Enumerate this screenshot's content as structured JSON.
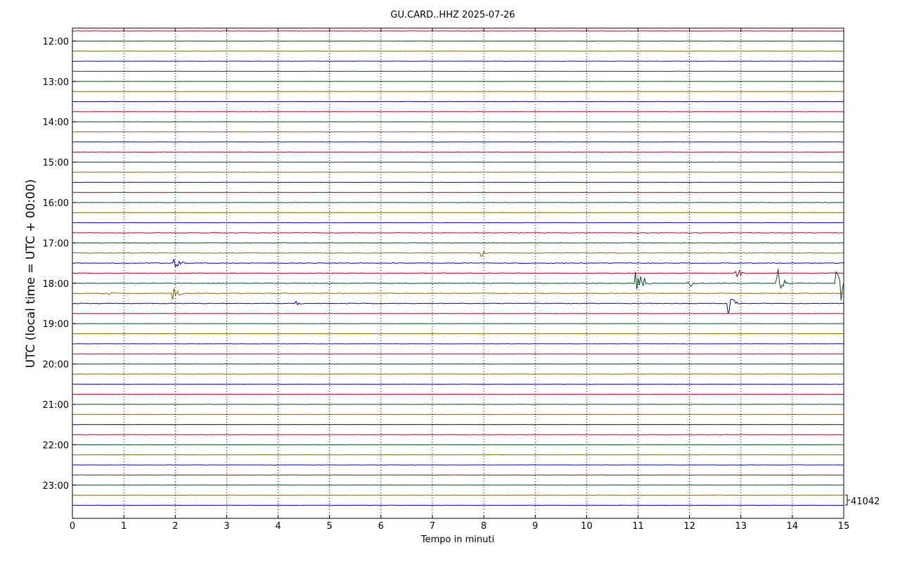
{
  "chart_data": {
    "type": "line",
    "title": "GU.CARD..HHZ 2025-07-26",
    "xlabel": "Tempo in minuti",
    "ylabel": "UTC (local time = UTC + 00:00)",
    "xlim": [
      0,
      15
    ],
    "x_ticks": [
      "0",
      "1",
      "2",
      "3",
      "4",
      "5",
      "6",
      "7",
      "8",
      "9",
      "10",
      "11",
      "12",
      "13",
      "14",
      "15"
    ],
    "y_ticks": [
      "12:00",
      "13:00",
      "14:00",
      "15:00",
      "16:00",
      "17:00",
      "18:00",
      "19:00",
      "20:00",
      "21:00",
      "22:00",
      "23:00"
    ],
    "trace_start": "11:45",
    "trace_interval_minutes": 15,
    "trace_count": 48,
    "trace_colors": [
      "#b2001f",
      "#004d1a",
      "#806600",
      "#0000cc"
    ],
    "grid": "vertical dotted",
    "scale_label": "41042",
    "events": [
      {
        "trace": 23,
        "minute": 1.98,
        "amplitude": 1.0
      },
      {
        "trace": 26,
        "minute": 0.7,
        "amplitude": 0.5
      },
      {
        "trace": 26,
        "minute": 1.95,
        "amplitude": 1.4
      },
      {
        "trace": 27,
        "minute": 4.35,
        "amplitude": 0.4
      },
      {
        "trace": 22,
        "minute": 7.95,
        "amplitude": 0.5
      },
      {
        "trace": 25,
        "minute": 10.95,
        "amplitude": 1.5
      },
      {
        "trace": 25,
        "minute": 11.05,
        "amplitude": 2.0
      },
      {
        "trace": 25,
        "minute": 11.98,
        "amplitude": 1.0
      },
      {
        "trace": 24,
        "minute": 12.9,
        "amplitude": 1.2
      },
      {
        "trace": 27,
        "minute": 12.75,
        "amplitude": 2.0
      },
      {
        "trace": 25,
        "minute": 13.7,
        "amplitude": 3.0
      },
      {
        "trace": 25,
        "minute": 14.85,
        "amplitude": 1.8
      },
      {
        "trace": 25,
        "minute": 14.95,
        "amplitude": 2.0
      }
    ]
  }
}
